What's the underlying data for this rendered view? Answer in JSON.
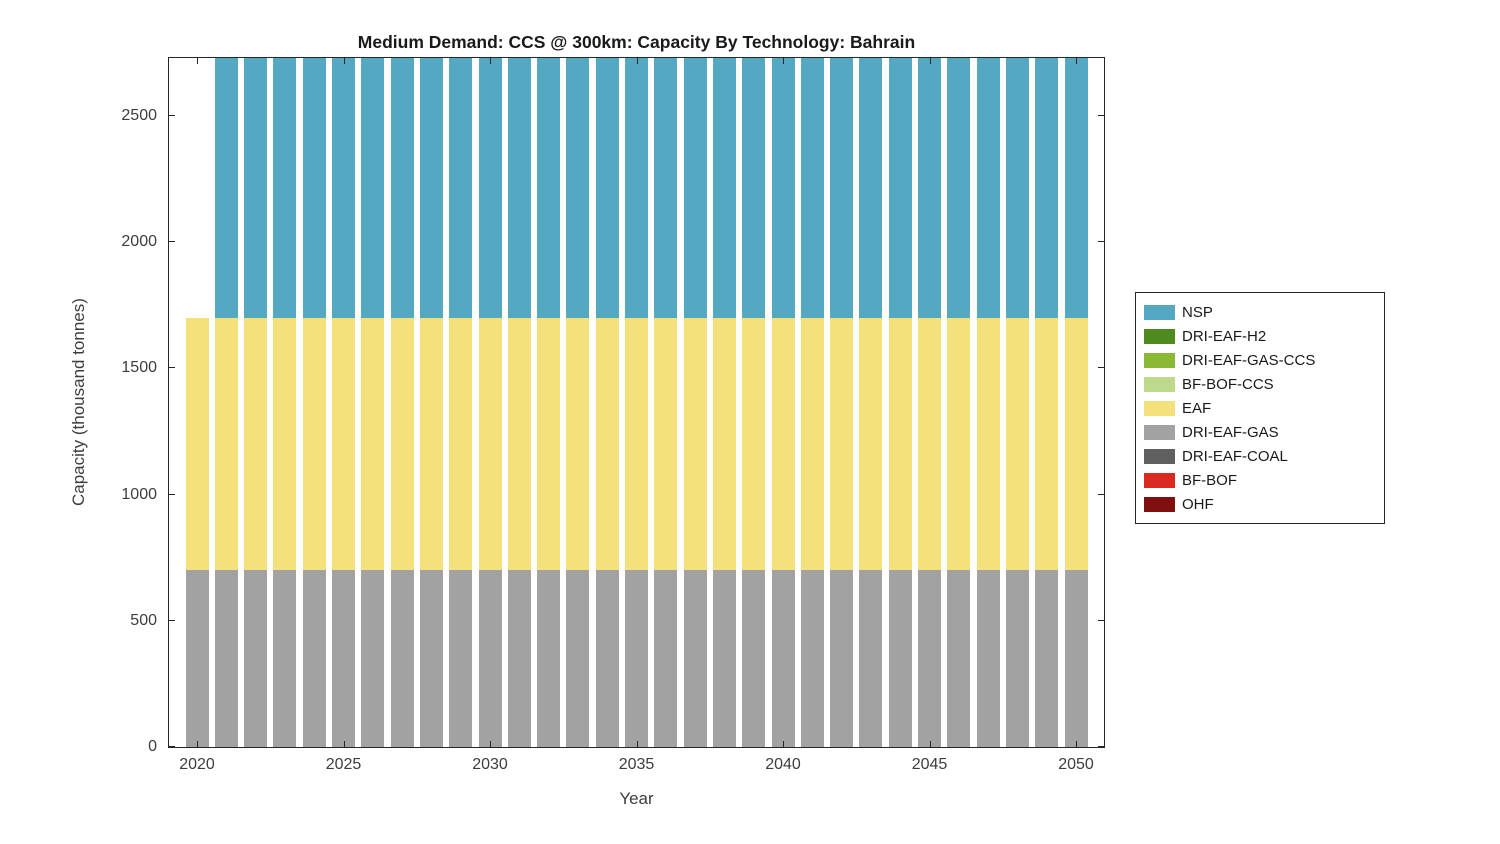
{
  "chart_data": {
    "type": "bar",
    "stacked": true,
    "title": "Medium Demand: CCS @ 300km: Capacity By Technology: Bahrain",
    "xlabel": "Year",
    "ylabel": "Capacity (thousand tonnes)",
    "x": [
      2020,
      2021,
      2022,
      2023,
      2024,
      2025,
      2026,
      2027,
      2028,
      2029,
      2030,
      2031,
      2032,
      2033,
      2034,
      2035,
      2036,
      2037,
      2038,
      2039,
      2040,
      2041,
      2042,
      2043,
      2044,
      2045,
      2046,
      2047,
      2048,
      2049,
      2050
    ],
    "x_ticks": [
      2020,
      2025,
      2030,
      2035,
      2040,
      2045,
      2050
    ],
    "y_ticks": [
      0,
      500,
      1000,
      1500,
      2000,
      2500
    ],
    "ylim": [
      0,
      2730
    ],
    "grid": false,
    "legend_position": "right-outside",
    "clip_note": "NSP segments extend above the y-axis limit and are clipped at the top of the axes",
    "series": [
      {
        "name": "NSP",
        "color": "#54A8C2",
        "values": [
          0,
          1100,
          1100,
          1100,
          1100,
          1100,
          1100,
          1100,
          1100,
          1100,
          1100,
          1100,
          1100,
          1100,
          1100,
          1100,
          1100,
          1100,
          1100,
          1100,
          1100,
          1100,
          1100,
          1100,
          1100,
          1100,
          1100,
          1100,
          1100,
          1100,
          1100
        ]
      },
      {
        "name": "DRI-EAF-H2",
        "color": "#4F8A1E",
        "values": [
          0,
          0,
          0,
          0,
          0,
          0,
          0,
          0,
          0,
          0,
          0,
          0,
          0,
          0,
          0,
          0,
          0,
          0,
          0,
          0,
          0,
          0,
          0,
          0,
          0,
          0,
          0,
          0,
          0,
          0,
          0
        ]
      },
      {
        "name": "DRI-EAF-GAS-CCS",
        "color": "#8ABA35",
        "values": [
          0,
          0,
          0,
          0,
          0,
          0,
          0,
          0,
          0,
          0,
          0,
          0,
          0,
          0,
          0,
          0,
          0,
          0,
          0,
          0,
          0,
          0,
          0,
          0,
          0,
          0,
          0,
          0,
          0,
          0,
          0
        ]
      },
      {
        "name": "BF-BOF-CCS",
        "color": "#BDDA8C",
        "values": [
          0,
          0,
          0,
          0,
          0,
          0,
          0,
          0,
          0,
          0,
          0,
          0,
          0,
          0,
          0,
          0,
          0,
          0,
          0,
          0,
          0,
          0,
          0,
          0,
          0,
          0,
          0,
          0,
          0,
          0,
          0
        ]
      },
      {
        "name": "EAF",
        "color": "#F4E17B",
        "values": [
          1000,
          1000,
          1000,
          1000,
          1000,
          1000,
          1000,
          1000,
          1000,
          1000,
          1000,
          1000,
          1000,
          1000,
          1000,
          1000,
          1000,
          1000,
          1000,
          1000,
          1000,
          1000,
          1000,
          1000,
          1000,
          1000,
          1000,
          1000,
          1000,
          1000,
          1000
        ]
      },
      {
        "name": "DRI-EAF-GAS",
        "color": "#A2A2A2",
        "values": [
          700,
          700,
          700,
          700,
          700,
          700,
          700,
          700,
          700,
          700,
          700,
          700,
          700,
          700,
          700,
          700,
          700,
          700,
          700,
          700,
          700,
          700,
          700,
          700,
          700,
          700,
          700,
          700,
          700,
          700,
          700
        ]
      },
      {
        "name": "DRI-EAF-COAL",
        "color": "#606060",
        "values": [
          0,
          0,
          0,
          0,
          0,
          0,
          0,
          0,
          0,
          0,
          0,
          0,
          0,
          0,
          0,
          0,
          0,
          0,
          0,
          0,
          0,
          0,
          0,
          0,
          0,
          0,
          0,
          0,
          0,
          0,
          0
        ]
      },
      {
        "name": "BF-BOF",
        "color": "#DA2A1F",
        "values": [
          0,
          0,
          0,
          0,
          0,
          0,
          0,
          0,
          0,
          0,
          0,
          0,
          0,
          0,
          0,
          0,
          0,
          0,
          0,
          0,
          0,
          0,
          0,
          0,
          0,
          0,
          0,
          0,
          0,
          0,
          0
        ]
      },
      {
        "name": "OHF",
        "color": "#800F0F",
        "values": [
          0,
          0,
          0,
          0,
          0,
          0,
          0,
          0,
          0,
          0,
          0,
          0,
          0,
          0,
          0,
          0,
          0,
          0,
          0,
          0,
          0,
          0,
          0,
          0,
          0,
          0,
          0,
          0,
          0,
          0,
          0
        ]
      }
    ]
  }
}
